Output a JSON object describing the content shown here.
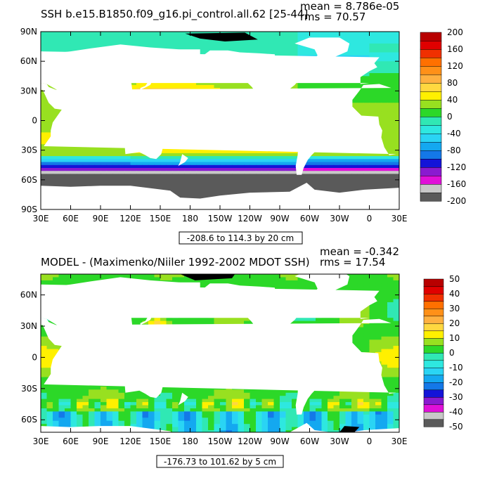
{
  "colors": {
    "top": [
      "#5a5a5a",
      "#c8c8c8",
      "#e010d8",
      "#8a1ad0",
      "#1414d8",
      "#1478e8",
      "#14a8f0",
      "#2ad4f4",
      "#2ee8e0",
      "#30e8b4",
      "#2cd828",
      "#98e020",
      "#fff000",
      "#ffd840",
      "#ffb040",
      "#ff9018",
      "#ff7000",
      "#f03000",
      "#e00000",
      "#b80000"
    ],
    "bottom": [
      "#5a5a5a",
      "#c8c8c8",
      "#e010d8",
      "#8a1ad0",
      "#1414d8",
      "#1478e8",
      "#14a8f0",
      "#2ad4f4",
      "#2ee8e0",
      "#30e8b4",
      "#2cd828",
      "#98e020",
      "#fff000",
      "#ffd840",
      "#ffb040",
      "#ff9018",
      "#ff7000",
      "#f03000",
      "#e00000",
      "#b80000"
    ],
    "land": "#ffffff",
    "ice": "#000000"
  },
  "chart_data": [
    {
      "type": "heatmap",
      "title": "SSH b.e15.B1850.f09_g16.pi_control.all.62 [25-44]",
      "stats": {
        "mean": "mean = 8.786e-05",
        "rms": "rms = 70.57"
      },
      "range_label": "-208.6 to 114.3 by 20 cm",
      "x_ticks": [
        "30E",
        "60E",
        "90E",
        "120E",
        "150E",
        "180",
        "150W",
        "120W",
        "90W",
        "60W",
        "30W",
        "0",
        "30E"
      ],
      "y_ticks": [
        "90N",
        "60N",
        "30N",
        "0",
        "30S",
        "60S",
        "90S"
      ],
      "xlim": [
        30,
        390
      ],
      "ylim": [
        -90,
        90
      ],
      "colorbar": {
        "labels": [
          "200",
          "160",
          "120",
          "80",
          "40",
          "0",
          "-40",
          "-80",
          "-120",
          "-160",
          "-200"
        ],
        "min": -200,
        "max": 200,
        "step": 20
      }
    },
    {
      "type": "heatmap",
      "title": "MODEL - (Maximenko/Niiler 1992-2002 MDOT SSH)",
      "stats": {
        "mean": "mean = -0.342",
        "rms": "rms = 17.54"
      },
      "range_label": "-176.73 to 101.62 by 5 cm",
      "x_ticks": [
        "30E",
        "60E",
        "90E",
        "120E",
        "150E",
        "180",
        "150W",
        "120W",
        "90W",
        "60W",
        "30W",
        "0",
        "30E"
      ],
      "y_ticks": [
        "60N",
        "30N",
        "0",
        "30S",
        "60S"
      ],
      "xlim": [
        30,
        390
      ],
      "ylim": [
        -72,
        80
      ],
      "colorbar": {
        "labels": [
          "50",
          "40",
          "30",
          "20",
          "10",
          "0",
          "-10",
          "-20",
          "-30",
          "-40",
          "-50"
        ],
        "min": -50,
        "max": 50,
        "step": 5
      }
    }
  ]
}
